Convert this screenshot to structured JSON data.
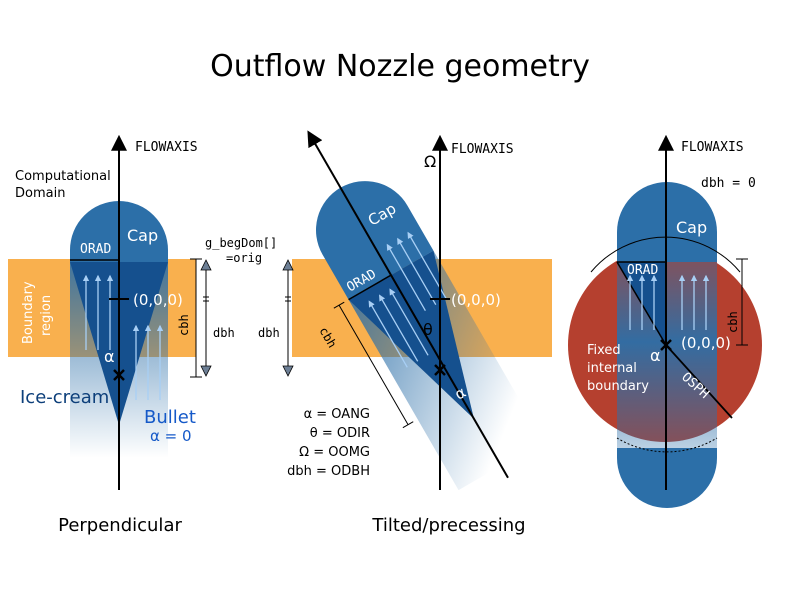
{
  "title": "Outflow Nozzle geometry",
  "common": {
    "flowaxis": "FLOWAXIS",
    "origin": "(0,0,0)",
    "cap": "Cap",
    "orad": "ORAD",
    "cbh": "cbh",
    "dbh": "dbh",
    "alpha": "α",
    "theta": "θ",
    "omega": "Ω"
  },
  "left_panel": {
    "computational_domain": [
      "Computational",
      "Domain"
    ],
    "boundary_region": [
      "Boundary",
      "region"
    ],
    "ice_cream": "Ice-cream",
    "bullet": "Bullet",
    "bullet_alpha": "α = 0",
    "caption": "Perpendicular"
  },
  "middle_panel": {
    "begdom": [
      "g_begDom[]",
      "=orig"
    ],
    "legend": [
      "α = OANG",
      "θ = ODIR",
      "Ω = OOMG",
      "dbh = ODBH"
    ],
    "caption": "Tilted/precessing"
  },
  "right_panel": {
    "dbh_eq": "dbh = 0",
    "fixed_boundary": [
      "Fixed",
      "internal",
      "boundary"
    ],
    "osph": "OSPH"
  },
  "colors": {
    "nozzle_blue": "#2c6fa8",
    "dark_blue": "#0d3f7a",
    "boundary_orange": "#f9b04e",
    "sphere_red": "#b5402f",
    "arrow_light": "#8cbbe8",
    "text_blue": "#1559c8"
  }
}
